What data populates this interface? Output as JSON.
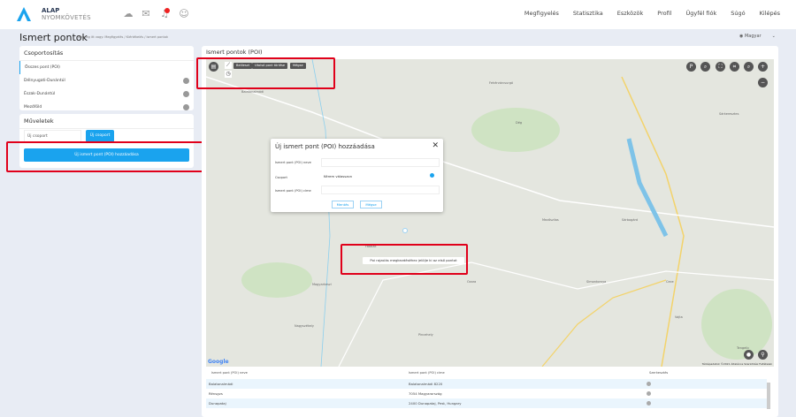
{
  "header": {
    "brand_line1": "ALAP",
    "brand_line2": "NYOMKÖVETÉS",
    "notification_count": "1",
    "nav": [
      "Megfigyelés",
      "Statisztika",
      "Eszközök",
      "Profil",
      "Ügyfél fiók",
      "Súgó",
      "Kilépés"
    ]
  },
  "page": {
    "title": "Ismert pontok",
    "breadcrumb": "Jelenleg itt vagy: Megfigyelés / Kiértékelés / Ismert pontok",
    "language": "Magyar"
  },
  "grouping": {
    "title": "Csoportosítás",
    "items": [
      {
        "label": "Összes pont (POI)"
      },
      {
        "label": "Délnyugati-Dunántúl"
      },
      {
        "label": "Észak-Dunántúl"
      },
      {
        "label": "Mezőföld"
      }
    ]
  },
  "actions": {
    "title": "Műveletek",
    "new_group_placeholder": "Új csoport",
    "new_group_button": "Új csoport",
    "add_poi_button": "Új ismert pont (POI) hozzáadása"
  },
  "map_panel": {
    "title": "Ismert pontok (POI)",
    "toolbar": [
      "Beilleszt",
      "Utolsó pont törlése",
      "Mégse"
    ],
    "hint": "Poi rajzolás megkezdéséhez jelölje ki az első pontot",
    "attribution": "Térképadatok ©2021   Általános Szerződési Feltételek",
    "labels": [
      "Balatonalmádi",
      "Fehérvárcsurgó",
      "Sárkeresztes",
      "Csákberény",
      "Polgárdi",
      "Füle",
      "Mezőszilas",
      "Sárbogárd",
      "Cece",
      "Vajta",
      "Igar",
      "Dég",
      "Simontornya",
      "Nagyszékely",
      "Magyarkeszi",
      "Fatalak",
      "Ozora",
      "Pincehely",
      "Tengelic",
      "Gárdony"
    ]
  },
  "modal": {
    "title": "Új ismert pont (POI) hozzáadása",
    "name_label": "Ismert pont (POI) neve",
    "group_label": "Csoport",
    "group_value": "Kérem válasszon",
    "address_label": "Ismert pont (POI) címe",
    "save": "Mentés",
    "cancel": "Mégse"
  },
  "table": {
    "columns": [
      "Ismert pont (POI) neve",
      "Ismert pont (POI) címe",
      "Szerkesztés"
    ],
    "rows": [
      {
        "name": "Balatonalmádi",
        "address": "Balatonalmádi 8220"
      },
      {
        "name": "Rénsgvs",
        "address": "7054 Magyarország"
      },
      {
        "name": "Dunapataj",
        "address": "2400 Dunapataj, Pest, Hungary"
      }
    ]
  },
  "colors": {
    "accent": "#1aa3ee",
    "highlight": "#e0001a"
  }
}
